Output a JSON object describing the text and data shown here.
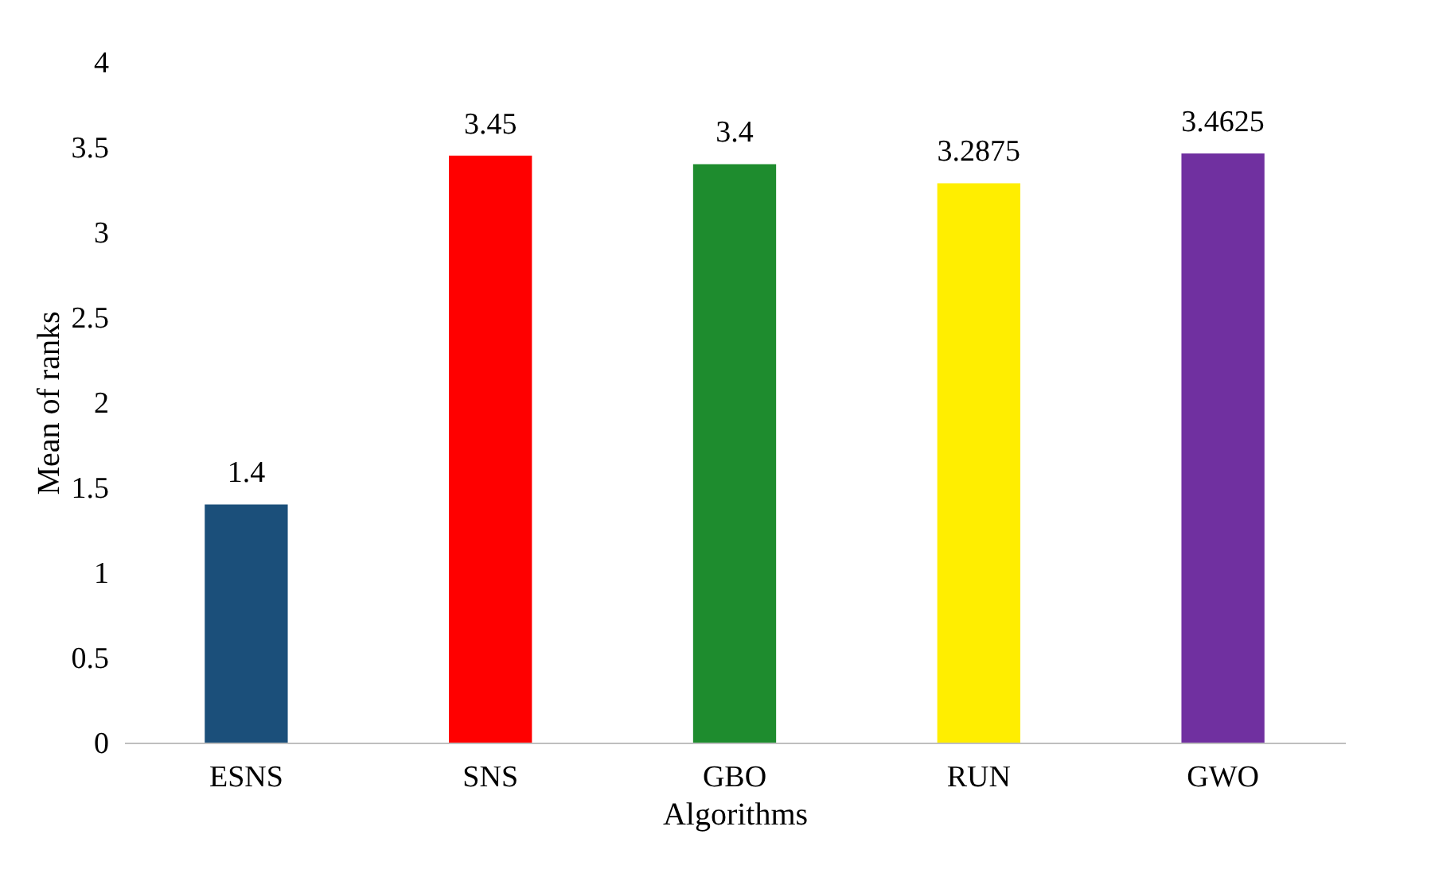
{
  "chart_data": {
    "type": "bar",
    "xlabel": "Algorithms",
    "ylabel": "Mean of ranks",
    "categories": [
      "ESNS",
      "SNS",
      "GBO",
      "RUN",
      "GWO"
    ],
    "values": [
      1.4,
      3.45,
      3.4,
      3.2875,
      3.4625
    ],
    "colors": [
      "#1b4f7a",
      "#ff0000",
      "#1e8c2e",
      "#ffee00",
      "#7030a0"
    ],
    "ylim": [
      0,
      4
    ],
    "yticks": [
      0,
      0.5,
      1,
      1.5,
      2,
      2.5,
      3,
      3.5,
      4
    ],
    "data_labels": true
  }
}
